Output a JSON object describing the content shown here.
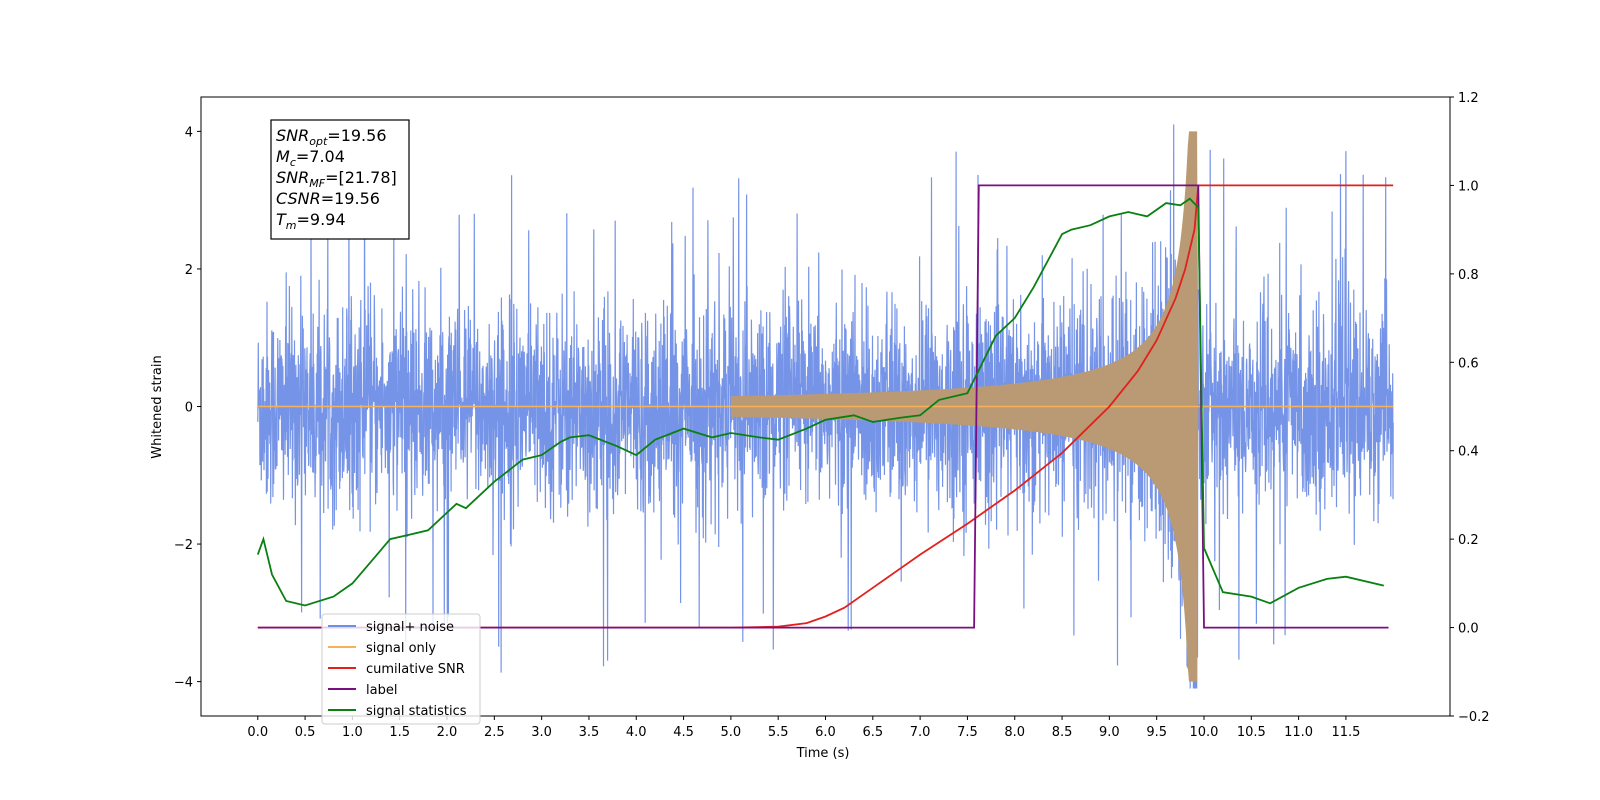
{
  "chart_data": {
    "type": "line",
    "xlabel": "Time (s)",
    "ylabel": "Whitened strain",
    "xlim": [
      -0.6,
      12.6
    ],
    "ylim": [
      -4.5,
      4.5
    ],
    "y2lim": [
      -0.2,
      1.2
    ],
    "x_ticks": [
      0.0,
      0.5,
      1.0,
      1.5,
      2.0,
      2.5,
      3.0,
      3.5,
      4.0,
      4.5,
      5.0,
      5.5,
      6.0,
      6.5,
      7.0,
      7.5,
      8.0,
      8.5,
      9.0,
      9.5,
      10.0,
      10.5,
      11.0,
      11.5
    ],
    "y_ticks": [
      -4,
      -2,
      0,
      2,
      4
    ],
    "y2_ticks": [
      -0.2,
      0.0,
      0.2,
      0.4,
      0.6,
      0.8,
      1.0,
      1.2
    ],
    "grid": false,
    "legend_position": "lower-left",
    "annotation": [
      {
        "sym": "SNR",
        "sub": "opt",
        "value": "=19.56"
      },
      {
        "sym": "M",
        "sub": "c",
        "value": "=7.04"
      },
      {
        "sym": "SNR",
        "sub": "MF",
        "value": "=[21.78]"
      },
      {
        "sym": "CSNR",
        "sub": "",
        "value": "=19.56"
      },
      {
        "sym": "T",
        "sub": "m",
        "value": "=9.94"
      }
    ],
    "series": [
      {
        "name": "signal+ noise",
        "color": "#6f8ee6",
        "axis": "left",
        "noise": {
          "t_start": 0.0,
          "t_end": 12.0,
          "typical_amplitude": 1.3,
          "max_peak": 4.1,
          "min_peak": -4.1
        }
      },
      {
        "name": "signal only",
        "color": "#f5b25a",
        "axis": "left",
        "chirp": {
          "t_start": 0.0,
          "t_merge": 9.94,
          "t_end": 12.0,
          "peak_amplitude": 4.0
        }
      },
      {
        "name": "cumilative SNR",
        "color": "#e0211c",
        "axis": "right",
        "x": [
          0.0,
          5.0,
          5.5,
          5.8,
          6.0,
          6.2,
          6.5,
          7.0,
          7.5,
          8.0,
          8.5,
          9.0,
          9.3,
          9.5,
          9.7,
          9.8,
          9.9,
          9.94,
          10.0,
          11.0,
          12.0
        ],
        "values": [
          0.0,
          0.0,
          0.002,
          0.01,
          0.025,
          0.045,
          0.09,
          0.165,
          0.235,
          0.31,
          0.395,
          0.5,
          0.58,
          0.65,
          0.745,
          0.81,
          0.9,
          1.0,
          1.0,
          1.0,
          1.0
        ]
      },
      {
        "name": "label",
        "color": "#7a0f82",
        "axis": "right",
        "x": [
          0.0,
          7.57,
          7.62,
          9.94,
          10.0,
          11.95
        ],
        "values": [
          0.0,
          0.0,
          1.0,
          1.0,
          0.0,
          0.0
        ]
      },
      {
        "name": "signal statistics",
        "color": "#0a7f12",
        "axis": "right",
        "x": [
          0.0,
          0.06,
          0.15,
          0.3,
          0.5,
          0.8,
          1.0,
          1.2,
          1.4,
          1.6,
          1.8,
          2.0,
          2.1,
          2.2,
          2.5,
          2.8,
          3.0,
          3.2,
          3.3,
          3.5,
          3.8,
          4.0,
          4.2,
          4.5,
          4.8,
          5.0,
          5.3,
          5.5,
          5.8,
          6.0,
          6.3,
          6.5,
          6.8,
          7.0,
          7.2,
          7.5,
          7.8,
          8.0,
          8.2,
          8.5,
          8.6,
          8.8,
          9.0,
          9.2,
          9.4,
          9.6,
          9.75,
          9.85,
          9.94,
          10.0,
          10.2,
          10.5,
          10.7,
          11.0,
          11.3,
          11.5,
          11.9
        ],
        "values": [
          0.165,
          0.2,
          0.12,
          0.06,
          0.05,
          0.07,
          0.1,
          0.15,
          0.2,
          0.21,
          0.22,
          0.26,
          0.28,
          0.27,
          0.33,
          0.38,
          0.39,
          0.42,
          0.43,
          0.435,
          0.41,
          0.39,
          0.425,
          0.45,
          0.43,
          0.44,
          0.43,
          0.425,
          0.45,
          0.47,
          0.48,
          0.465,
          0.475,
          0.48,
          0.515,
          0.53,
          0.66,
          0.7,
          0.77,
          0.89,
          0.9,
          0.91,
          0.93,
          0.94,
          0.93,
          0.96,
          0.955,
          0.97,
          0.95,
          0.18,
          0.08,
          0.07,
          0.055,
          0.09,
          0.11,
          0.115,
          0.095
        ]
      }
    ]
  }
}
